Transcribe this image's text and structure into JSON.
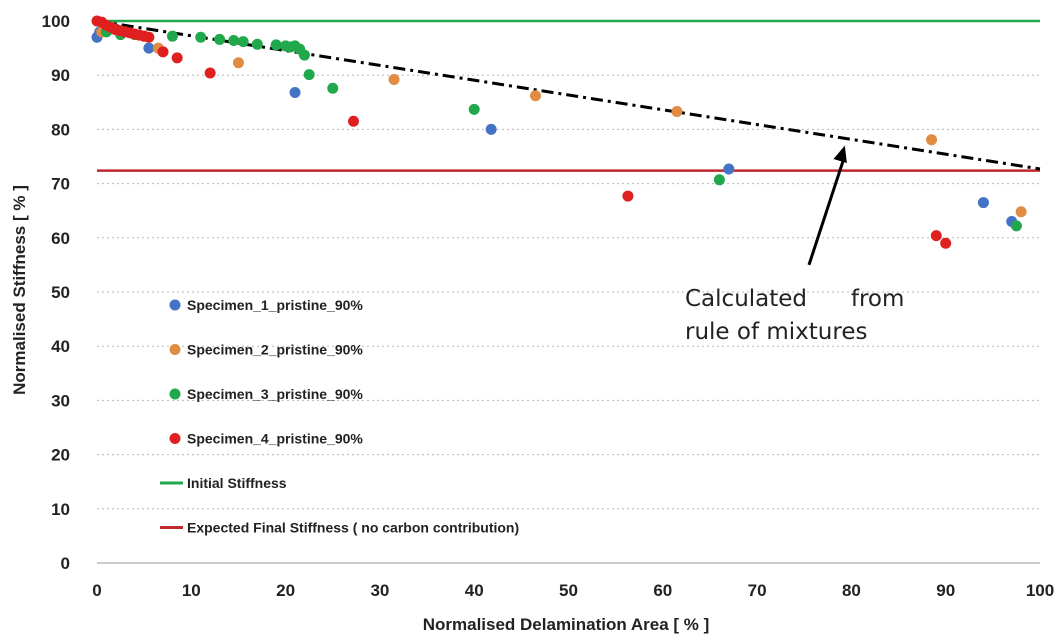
{
  "chart_data": {
    "type": "scatter",
    "xlabel": "Normalised Delamination Area [ % ]",
    "ylabel": "Normalised Stiffness [ % ]",
    "xlim": [
      0,
      100
    ],
    "ylim": [
      0,
      100
    ],
    "xticks": [
      "0",
      "10",
      "20",
      "30",
      "40",
      "50",
      "60",
      "70",
      "80",
      "90",
      "100"
    ],
    "yticks": [
      "0",
      "10",
      "20",
      "30",
      "40",
      "50",
      "60",
      "70",
      "80",
      "90",
      "100"
    ],
    "grid": "dotted horizontal",
    "legend_position": "bottom-left",
    "series": [
      {
        "name": "Specimen_1_pristine_90%",
        "color": "#4472c4",
        "points": [
          [
            0,
            97
          ],
          [
            0.3,
            98
          ],
          [
            1,
            99
          ],
          [
            2,
            98.5
          ],
          [
            5.5,
            95
          ],
          [
            21,
            86.8
          ],
          [
            41.8,
            80
          ],
          [
            67,
            72.7
          ],
          [
            94,
            66.5
          ],
          [
            97,
            63
          ]
        ]
      },
      {
        "name": "Specimen_2_pristine_90%",
        "color": "#e08c42",
        "points": [
          [
            0.5,
            98
          ],
          [
            1.5,
            98.5
          ],
          [
            3,
            98
          ],
          [
            6.5,
            95
          ],
          [
            15,
            92.3
          ],
          [
            31.5,
            89.2
          ],
          [
            46.5,
            86.2
          ],
          [
            61.5,
            83.3
          ],
          [
            88.5,
            78.1
          ],
          [
            98,
            64.8
          ]
        ]
      },
      {
        "name": "Specimen_3_pristine_90%",
        "color": "#21a84c",
        "points": [
          [
            1,
            98
          ],
          [
            2.5,
            97.5
          ],
          [
            4,
            97.5
          ],
          [
            5,
            97.2
          ],
          [
            8,
            97.2
          ],
          [
            11,
            97
          ],
          [
            13,
            96.6
          ],
          [
            14.5,
            96.4
          ],
          [
            15.5,
            96.2
          ],
          [
            17,
            95.7
          ],
          [
            19,
            95.6
          ],
          [
            20,
            95.4
          ],
          [
            20.5,
            95.2
          ],
          [
            21,
            95.4
          ],
          [
            21.5,
            94.8
          ],
          [
            22,
            93.7
          ],
          [
            22.5,
            90.1
          ],
          [
            25,
            87.6
          ],
          [
            40,
            83.7
          ],
          [
            66,
            70.7
          ],
          [
            97.5,
            62.2
          ]
        ]
      },
      {
        "name": "Specimen_4_pristine_90%",
        "color": "#e02020",
        "points": [
          [
            0,
            100
          ],
          [
            0.5,
            99.8
          ],
          [
            1,
            99.2
          ],
          [
            1.5,
            98.8
          ],
          [
            2,
            98.4
          ],
          [
            2.5,
            98.2
          ],
          [
            3,
            98
          ],
          [
            3.5,
            97.8
          ],
          [
            4,
            97.6
          ],
          [
            4.5,
            97.4
          ],
          [
            5,
            97.2
          ],
          [
            5.5,
            97
          ],
          [
            7,
            94.3
          ],
          [
            8.5,
            93.2
          ],
          [
            12,
            90.4
          ],
          [
            27.2,
            81.5
          ],
          [
            56.3,
            67.7
          ],
          [
            89,
            60.4
          ],
          [
            90,
            59
          ]
        ]
      },
      {
        "name": "Initial Stiffness",
        "color": "#21a84c",
        "type": "line",
        "y": 100
      },
      {
        "name": "Expected Final Stiffness ( no carbon contribution)",
        "color": "#c0282d",
        "type": "line",
        "y": 72.4
      }
    ],
    "trend_line": {
      "from": [
        0,
        100
      ],
      "to": [
        100,
        72.7
      ],
      "color": "#000000",
      "style": "dash-dot"
    },
    "annotation": {
      "line1": "Calculated      from",
      "line2": "rule of mixtures",
      "arrow_from": [
        75.5,
        55
      ],
      "arrow_to": [
        79.3,
        77
      ]
    }
  }
}
